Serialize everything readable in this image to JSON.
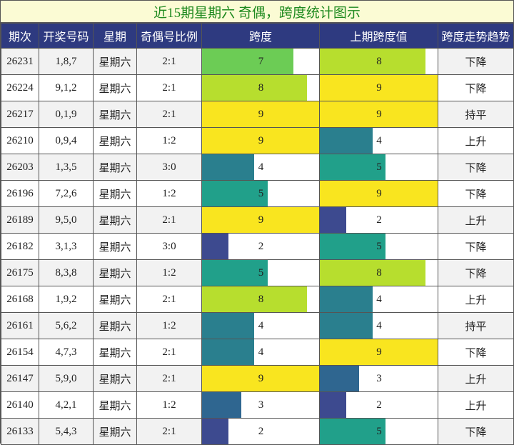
{
  "title": "近15期星期六 奇偶，跨度统计图示",
  "headers": [
    "期次",
    "开奖号码",
    "星期",
    "奇偶号比例",
    "跨度",
    "上期跨度值",
    "跨度走势趋势"
  ],
  "chart_data": {
    "type": "table",
    "title": "近15期星期六 奇偶，跨度统计图示",
    "value_max": 9,
    "columns": [
      "期次",
      "开奖号码",
      "星期",
      "奇偶号比例",
      "跨度",
      "上期跨度值",
      "跨度走势趋势"
    ],
    "rows": [
      {
        "period": "26231",
        "numbers": "1,8,7",
        "weekday": "星期六",
        "ratio": "2:1",
        "span": 7,
        "prev_span": 8,
        "trend": "下降"
      },
      {
        "period": "26224",
        "numbers": "9,1,2",
        "weekday": "星期六",
        "ratio": "2:1",
        "span": 8,
        "prev_span": 9,
        "trend": "下降"
      },
      {
        "period": "26217",
        "numbers": "0,1,9",
        "weekday": "星期六",
        "ratio": "2:1",
        "span": 9,
        "prev_span": 9,
        "trend": "持平"
      },
      {
        "period": "26210",
        "numbers": "0,9,4",
        "weekday": "星期六",
        "ratio": "1:2",
        "span": 9,
        "prev_span": 4,
        "trend": "上升"
      },
      {
        "period": "26203",
        "numbers": "1,3,5",
        "weekday": "星期六",
        "ratio": "3:0",
        "span": 4,
        "prev_span": 5,
        "trend": "下降"
      },
      {
        "period": "26196",
        "numbers": "7,2,6",
        "weekday": "星期六",
        "ratio": "1:2",
        "span": 5,
        "prev_span": 9,
        "trend": "下降"
      },
      {
        "period": "26189",
        "numbers": "9,5,0",
        "weekday": "星期六",
        "ratio": "2:1",
        "span": 9,
        "prev_span": 2,
        "trend": "上升"
      },
      {
        "period": "26182",
        "numbers": "3,1,3",
        "weekday": "星期六",
        "ratio": "3:0",
        "span": 2,
        "prev_span": 5,
        "trend": "下降"
      },
      {
        "period": "26175",
        "numbers": "8,3,8",
        "weekday": "星期六",
        "ratio": "1:2",
        "span": 5,
        "prev_span": 8,
        "trend": "下降"
      },
      {
        "period": "26168",
        "numbers": "1,9,2",
        "weekday": "星期六",
        "ratio": "2:1",
        "span": 8,
        "prev_span": 4,
        "trend": "上升"
      },
      {
        "period": "26161",
        "numbers": "5,6,2",
        "weekday": "星期六",
        "ratio": "1:2",
        "span": 4,
        "prev_span": 4,
        "trend": "持平"
      },
      {
        "period": "26154",
        "numbers": "4,7,3",
        "weekday": "星期六",
        "ratio": "2:1",
        "span": 4,
        "prev_span": 9,
        "trend": "下降"
      },
      {
        "period": "26147",
        "numbers": "5,9,0",
        "weekday": "星期六",
        "ratio": "2:1",
        "span": 9,
        "prev_span": 3,
        "trend": "上升"
      },
      {
        "period": "26140",
        "numbers": "4,2,1",
        "weekday": "星期六",
        "ratio": "1:2",
        "span": 3,
        "prev_span": 2,
        "trend": "上升"
      },
      {
        "period": "26133",
        "numbers": "5,4,3",
        "weekday": "星期六",
        "ratio": "2:1",
        "span": 2,
        "prev_span": 5,
        "trend": "下降"
      }
    ],
    "colors": {
      "2": "#3d4a8f",
      "3": "#2f6690",
      "4": "#2a7f8e",
      "5": "#21a08a",
      "7": "#6ccc55",
      "8": "#b7de2e",
      "9": "#f9e51f"
    }
  }
}
